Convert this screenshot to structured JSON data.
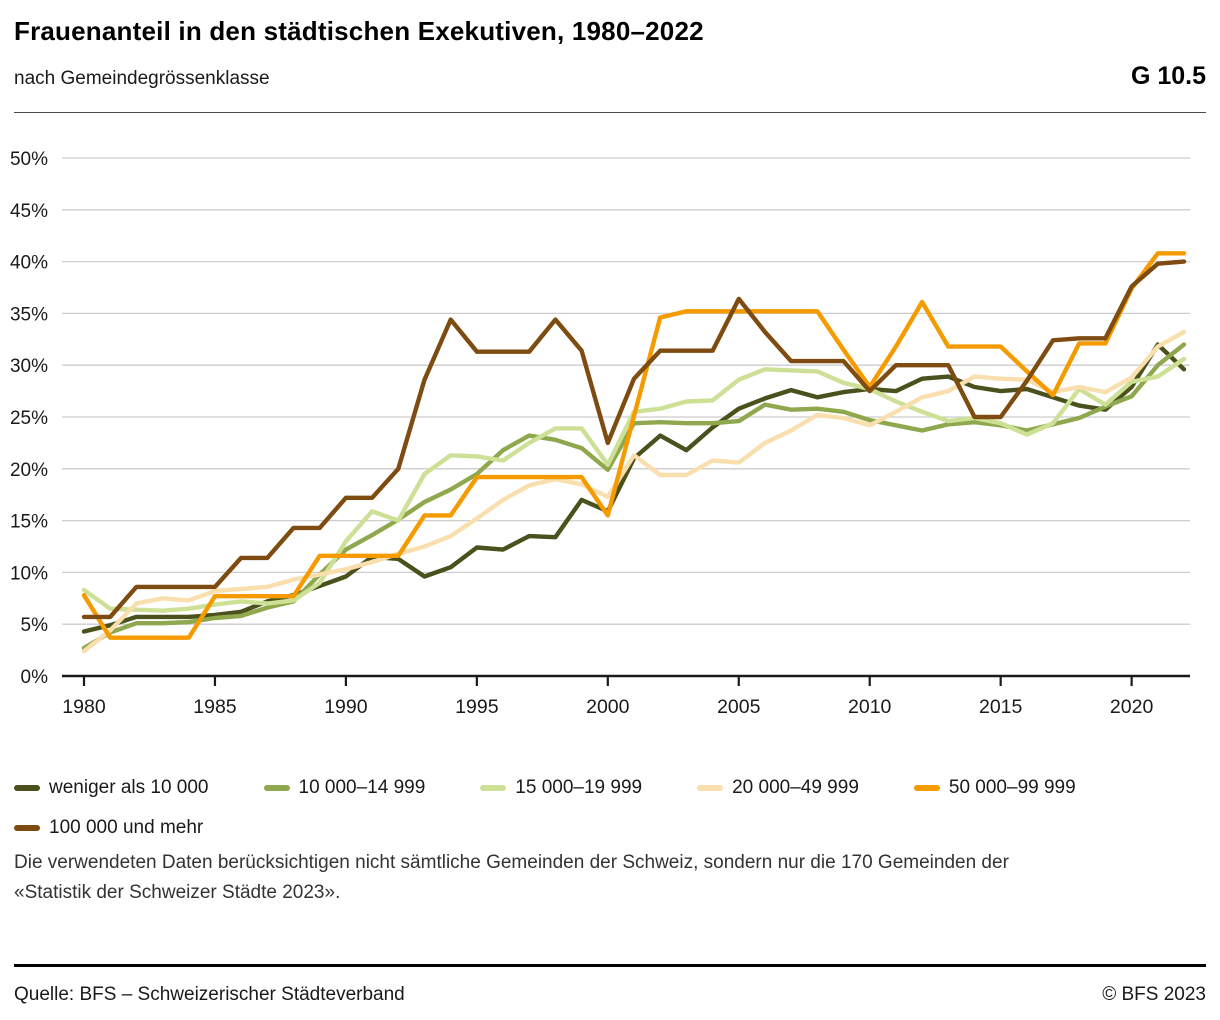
{
  "header": {
    "title": "Frauenanteil in den städtischen Exekutiven, 1980–2022",
    "subtitle": "nach Gemeindegrössenklasse",
    "figure_id": "G 10.5"
  },
  "chart_data": {
    "type": "line",
    "title": "Frauenanteil in den städtischen Exekutiven, 1980–2022",
    "xlabel": "",
    "ylabel": "",
    "x_range": [
      1980,
      2022
    ],
    "ylim": [
      0,
      50
    ],
    "y_tick_step": 5,
    "y_tick_suffix": "%",
    "x_ticks": [
      1980,
      1985,
      1990,
      1995,
      2000,
      2005,
      2010,
      2015,
      2020
    ],
    "grid": true,
    "legend_position": "bottom",
    "x": [
      1980,
      1981,
      1982,
      1983,
      1984,
      1985,
      1986,
      1987,
      1988,
      1989,
      1990,
      1991,
      1992,
      1993,
      1994,
      1995,
      1996,
      1997,
      1998,
      1999,
      2000,
      2001,
      2002,
      2003,
      2004,
      2005,
      2006,
      2007,
      2008,
      2009,
      2010,
      2011,
      2012,
      2013,
      2014,
      2015,
      2016,
      2017,
      2018,
      2019,
      2020,
      2021,
      2022
    ],
    "series": [
      {
        "name": "weniger als 10 000",
        "color": "#4b511d",
        "values": [
          4.3,
          4.9,
          5.7,
          5.7,
          5.7,
          5.9,
          6.2,
          7.2,
          7.8,
          8.7,
          9.6,
          11.5,
          11.3,
          9.6,
          10.5,
          12.4,
          12.2,
          13.5,
          13.4,
          17.0,
          15.9,
          21.0,
          23.2,
          21.8,
          24.0,
          25.8,
          26.8,
          27.6,
          26.9,
          27.4,
          27.7,
          27.5,
          28.7,
          28.9,
          27.9,
          27.5,
          27.7,
          26.9,
          26.1,
          25.7,
          27.9,
          32.0,
          29.6
        ]
      },
      {
        "name": "10 000–14 999",
        "color": "#8fa84d",
        "values": [
          2.7,
          4.2,
          5.1,
          5.1,
          5.2,
          5.6,
          5.8,
          6.6,
          7.2,
          9.8,
          12.2,
          13.6,
          15.1,
          16.8,
          18.0,
          19.5,
          21.8,
          23.2,
          22.8,
          22.0,
          19.9,
          24.4,
          24.5,
          24.4,
          24.4,
          24.6,
          26.2,
          25.7,
          25.8,
          25.5,
          24.7,
          24.2,
          23.7,
          24.3,
          24.5,
          24.2,
          23.7,
          24.3,
          24.9,
          26.0,
          27.0,
          30.0,
          32.0
        ]
      },
      {
        "name": "15 000–19 999",
        "color": "#cde096",
        "values": [
          8.3,
          6.5,
          6.4,
          6.3,
          6.5,
          6.9,
          7.2,
          7.0,
          7.3,
          9.0,
          13.0,
          15.9,
          15.0,
          19.5,
          21.3,
          21.2,
          20.8,
          22.5,
          23.9,
          23.9,
          20.4,
          25.5,
          25.8,
          26.5,
          26.6,
          28.6,
          29.6,
          29.5,
          29.4,
          28.3,
          27.7,
          26.5,
          25.5,
          24.6,
          24.9,
          24.4,
          23.3,
          24.4,
          27.7,
          26.2,
          28.4,
          28.9,
          30.6
        ]
      },
      {
        "name": "20 000–49 999",
        "color": "#fadfae",
        "values": [
          2.4,
          4.4,
          7.0,
          7.5,
          7.3,
          8.2,
          8.4,
          8.6,
          9.3,
          9.8,
          10.3,
          11.0,
          11.8,
          12.5,
          13.5,
          15.2,
          17.0,
          18.4,
          19.0,
          18.5,
          17.3,
          21.3,
          19.4,
          19.4,
          20.8,
          20.6,
          22.5,
          23.7,
          25.2,
          24.9,
          24.2,
          25.5,
          26.9,
          27.5,
          28.9,
          28.7,
          28.6,
          27.4,
          27.9,
          27.4,
          28.8,
          31.8,
          33.2
        ]
      },
      {
        "name": "50 000–99 999",
        "color": "#f59b00",
        "values": [
          7.8,
          3.7,
          3.7,
          3.7,
          3.7,
          7.7,
          7.7,
          7.7,
          7.7,
          11.6,
          11.6,
          11.6,
          11.6,
          15.5,
          15.5,
          19.2,
          19.2,
          19.2,
          19.2,
          19.2,
          15.5,
          25.1,
          34.6,
          35.2,
          35.2,
          35.2,
          35.2,
          35.2,
          35.2,
          31.5,
          27.9,
          31.8,
          36.1,
          31.8,
          31.8,
          31.8,
          29.4,
          27.1,
          32.1,
          32.1,
          37.4,
          40.8,
          40.8
        ]
      },
      {
        "name": "100 000 und mehr",
        "color": "#7e4b10",
        "values": [
          5.7,
          5.7,
          8.6,
          8.6,
          8.6,
          8.6,
          11.4,
          11.4,
          14.3,
          14.3,
          17.2,
          17.2,
          20.0,
          28.6,
          34.4,
          31.3,
          31.3,
          31.3,
          34.4,
          31.4,
          22.5,
          28.7,
          31.4,
          31.4,
          31.4,
          36.4,
          33.2,
          30.4,
          30.4,
          30.4,
          27.5,
          30.0,
          30.0,
          30.0,
          25.0,
          25.0,
          28.5,
          32.4,
          32.6,
          32.6,
          37.6,
          39.8,
          40.0
        ]
      }
    ]
  },
  "note": {
    "line1": "Die verwendeten Daten berücksichtigen nicht sämtliche Gemeinden der Schweiz, sondern nur die 170 Gemeinden der",
    "line2": "«Statistik der Schweizer Städte 2023»."
  },
  "footer": {
    "source": "Quelle: BFS – Schweizerischer Städteverband",
    "copyright": "© BFS 2023"
  }
}
